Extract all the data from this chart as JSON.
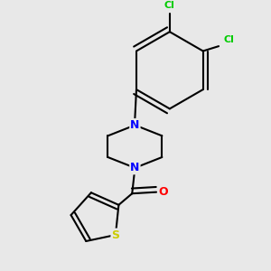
{
  "background_color": "#e8e8e8",
  "bond_color": "#000000",
  "bond_width": 1.5,
  "atom_colors": {
    "N": "#0000ff",
    "O": "#ff0000",
    "S": "#cccc00",
    "Cl": "#00cc00"
  }
}
